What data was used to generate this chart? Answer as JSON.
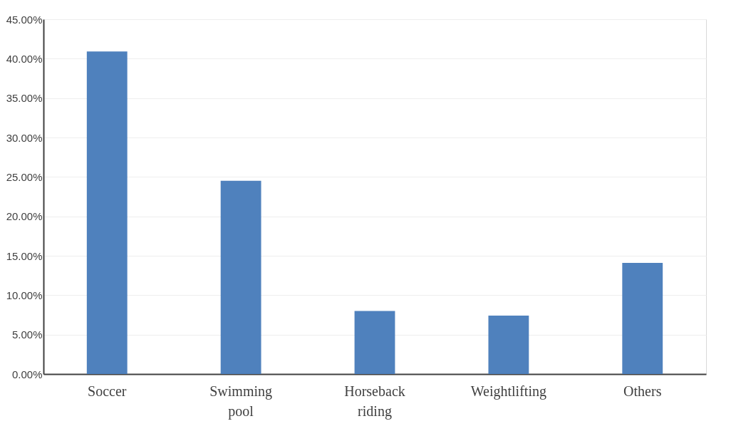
{
  "chart_data": {
    "type": "bar",
    "categories": [
      "Soccer",
      "Swimming pool",
      "Horseback riding",
      "Weightlifting",
      "Others"
    ],
    "values": [
      40.9,
      24.5,
      8.0,
      7.4,
      14.1
    ],
    "color": "#4f81bd",
    "ylim": [
      0,
      45
    ],
    "yticks": [
      {
        "value": 0,
        "label": "0.00%"
      },
      {
        "value": 5,
        "label": "5.00%"
      },
      {
        "value": 10,
        "label": "10.00%"
      },
      {
        "value": 15,
        "label": "15.00%"
      },
      {
        "value": 20,
        "label": "20.00%"
      },
      {
        "value": 25,
        "label": "25.00%"
      },
      {
        "value": 30,
        "label": "30.00%"
      },
      {
        "value": 35,
        "label": "35.00%"
      },
      {
        "value": 40,
        "label": "40.00%"
      },
      {
        "value": 45,
        "label": "45.00%"
      }
    ],
    "grid": "y"
  }
}
